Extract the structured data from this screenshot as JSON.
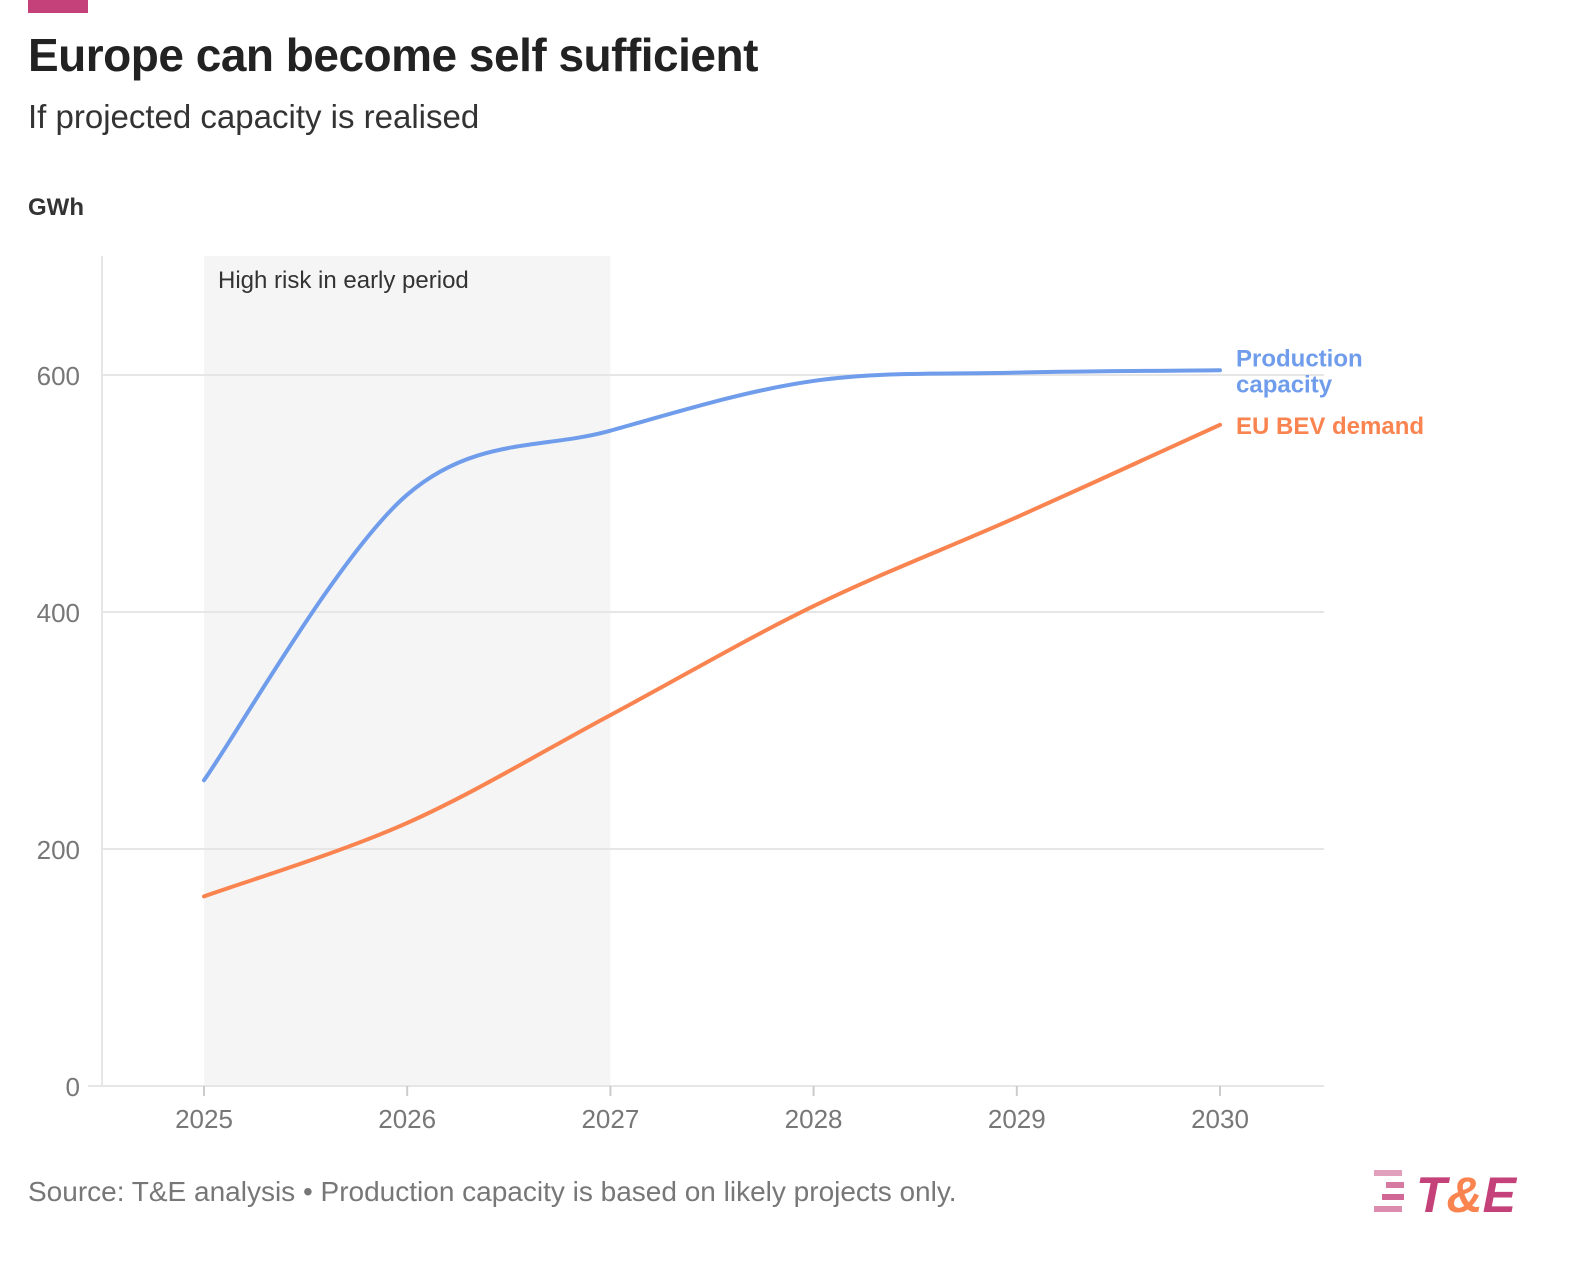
{
  "header": {
    "title": "Europe can become self sufficient",
    "subtitle": "If projected capacity is realised"
  },
  "footer": {
    "source": "Source: T&E analysis • Production capacity is based on likely projects only.",
    "logo_text": "T&E"
  },
  "colors": {
    "accent": "#c4417a",
    "production": "#6f9ceb",
    "demand": "#fa8450",
    "shade": "#f5f5f5"
  },
  "chart_data": {
    "type": "line",
    "title": "Europe can become self sufficient",
    "subtitle": "If projected capacity is realised",
    "ylabel": "GWh",
    "x": [
      2025,
      2026,
      2027,
      2028,
      2029,
      2030
    ],
    "xticks": [
      "2025",
      "2026",
      "2027",
      "2028",
      "2029",
      "2030"
    ],
    "yticks": [
      "0",
      "200",
      "400",
      "600"
    ],
    "ylim": [
      0,
      700
    ],
    "grid": true,
    "annotation": {
      "label": "High risk in early period",
      "x_from": 2025,
      "x_to": 2027
    },
    "series": [
      {
        "name": "Production capacity",
        "label_lines": [
          "Production",
          "capacity"
        ],
        "color": "#6f9ceb",
        "values": [
          258,
          499,
          553,
          595,
          602,
          604
        ]
      },
      {
        "name": "EU BEV demand",
        "label_lines": [
          "EU BEV demand"
        ],
        "color": "#fa8450",
        "values": [
          160,
          222,
          313,
          405,
          480,
          558
        ]
      }
    ]
  }
}
